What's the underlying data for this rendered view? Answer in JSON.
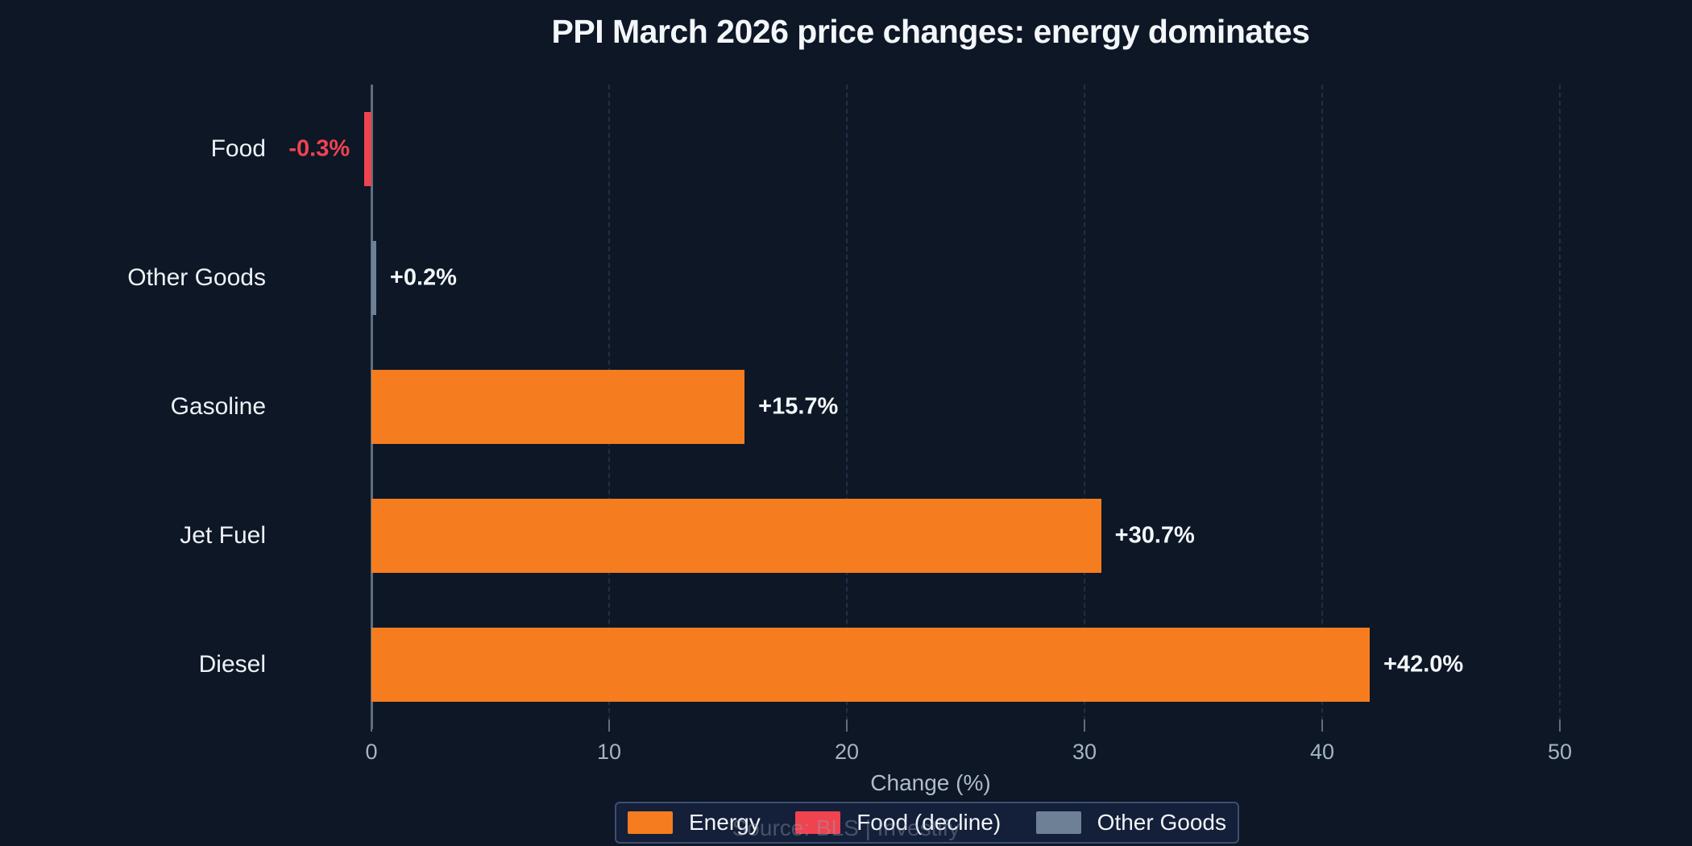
{
  "title": "PPI March 2026 price changes: energy dominates",
  "footer": "Source: BLS | Investify",
  "colors": {
    "background": "#0d1726",
    "energy": "#f57c1f",
    "food_decline": "#ef4350",
    "other_goods": "#6e8096",
    "axis": "#5d6f80"
  },
  "chart_data": {
    "type": "bar",
    "orientation": "horizontal",
    "title": "PPI March 2026 price changes: energy dominates",
    "xlabel": "Change (%)",
    "categories": [
      "Food",
      "Other Goods",
      "Gasoline",
      "Jet Fuel",
      "Diesel"
    ],
    "values": [
      -0.3,
      0.2,
      15.7,
      30.7,
      42.0
    ],
    "value_labels": [
      "-0.3%",
      "+0.2%",
      "+15.7%",
      "+30.7%",
      "+42.0%"
    ],
    "bar_color_keys": [
      "food_decline",
      "other_goods",
      "energy",
      "energy",
      "energy"
    ],
    "x_ticks": [
      0,
      10,
      20,
      30,
      40,
      50
    ],
    "xlim": [
      -2.5,
      54
    ],
    "grid": "dashed-vertical",
    "zero_line": true,
    "legend_position": "bottom-center",
    "legend": [
      {
        "label": "Energy",
        "color_key": "energy"
      },
      {
        "label": "Food (decline)",
        "color_key": "food_decline"
      },
      {
        "label": "Other Goods",
        "color_key": "other_goods"
      }
    ]
  }
}
